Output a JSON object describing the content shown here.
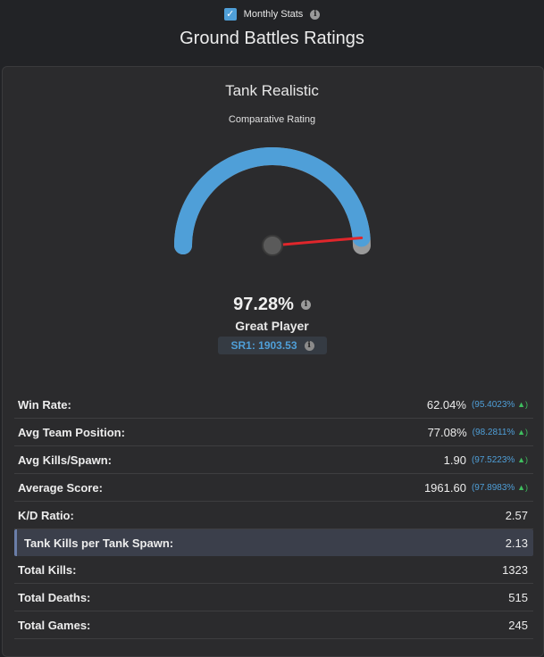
{
  "header": {
    "monthly_label": "Monthly Stats",
    "monthly_checked": true,
    "title": "Ground Battles Ratings"
  },
  "card": {
    "mode": "Tank Realistic",
    "subtitle": "Comparative Rating",
    "gauge": {
      "value_pct": 97.28,
      "arc_color": "#4f9fd8",
      "needle_color": "#e0262b"
    },
    "percent": "97.28%",
    "player_label": "Great Player",
    "sr": "SR1: 1903.53"
  },
  "stats": [
    {
      "label": "Win Rate:",
      "value": "62.04%",
      "percentile": "(95.4023%",
      "trend": "▲)"
    },
    {
      "label": "Avg Team Position:",
      "value": "77.08%",
      "percentile": "(98.2811%",
      "trend": "▲)"
    },
    {
      "label": "Avg Kills/Spawn:",
      "value": "1.90",
      "percentile": "(97.5223%",
      "trend": "▲)"
    },
    {
      "label": "Average Score:",
      "value": "1961.60",
      "percentile": "(97.8983%",
      "trend": "▲)"
    },
    {
      "label": "K/D Ratio:",
      "value": "2.57"
    },
    {
      "label": "Tank Kills per Tank Spawn:",
      "value": "2.13",
      "highlight": true
    },
    {
      "label": "Total Kills:",
      "value": "1323"
    },
    {
      "label": "Total Deaths:",
      "value": "515"
    },
    {
      "label": "Total Games:",
      "value": "245"
    }
  ]
}
